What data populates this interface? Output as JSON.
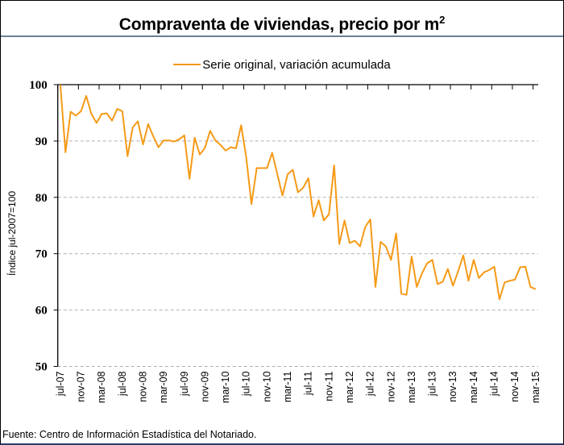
{
  "chart_data": {
    "type": "line",
    "title": "Compraventa de viviendas, precio por m",
    "title_superscript": "2",
    "xlabel": "",
    "ylabel": "Índice jul-2007=100",
    "ylim": [
      50,
      100
    ],
    "yticks": [
      50,
      60,
      70,
      80,
      90,
      100
    ],
    "grid": "horizontal dashed",
    "legend_position": "top-center",
    "tick_labels": [
      "jul-07",
      "nov-07",
      "mar-08",
      "jul-08",
      "nov-08",
      "mar-09",
      "jul-09",
      "nov-09",
      "mar-10",
      "jul-10",
      "nov-10",
      "mar-11",
      "jul-11",
      "nov-11",
      "mar-12",
      "jul-12",
      "nov-12",
      "mar-13",
      "jul-13",
      "nov-13",
      "mar-14",
      "jul-14",
      "nov-14",
      "mar-15"
    ],
    "x_start": "jul-07",
    "x_end": "mar-15",
    "x_frequency": "monthly",
    "series": [
      {
        "name": "Serie original, variación acumulada",
        "color": "#f59a17",
        "values": [
          100,
          88.0,
          95.2,
          94.5,
          95.3,
          98.0,
          94.8,
          93.2,
          94.8,
          94.9,
          93.6,
          95.7,
          95.3,
          87.3,
          92.4,
          93.5,
          89.4,
          93.0,
          90.8,
          88.9,
          90.1,
          90.1,
          89.9,
          90.3,
          91.0,
          83.3,
          90.6,
          87.6,
          88.8,
          91.8,
          90.1,
          89.3,
          88.3,
          88.9,
          88.7,
          92.8,
          87.0,
          78.8,
          85.2,
          85.2,
          85.2,
          87.9,
          84.1,
          80.3,
          84.1,
          84.9,
          80.9,
          81.7,
          83.4,
          76.6,
          79.5,
          75.9,
          77.0,
          85.7,
          71.7,
          75.9,
          71.9,
          72.3,
          71.3,
          74.7,
          76.1,
          64.1,
          72.1,
          71.3,
          68.9,
          73.6,
          62.9,
          62.7,
          69.5,
          64.1,
          66.5,
          68.3,
          68.9,
          64.6,
          65.0,
          67.3,
          64.3,
          66.9,
          69.7,
          65.2,
          68.9,
          65.7,
          66.7,
          67.1,
          67.7,
          61.9,
          64.9,
          65.2,
          65.4,
          67.6,
          67.7,
          64.1,
          63.7
        ]
      }
    ]
  },
  "source": "Fuente: Centro de Información Estadística del Notariado."
}
